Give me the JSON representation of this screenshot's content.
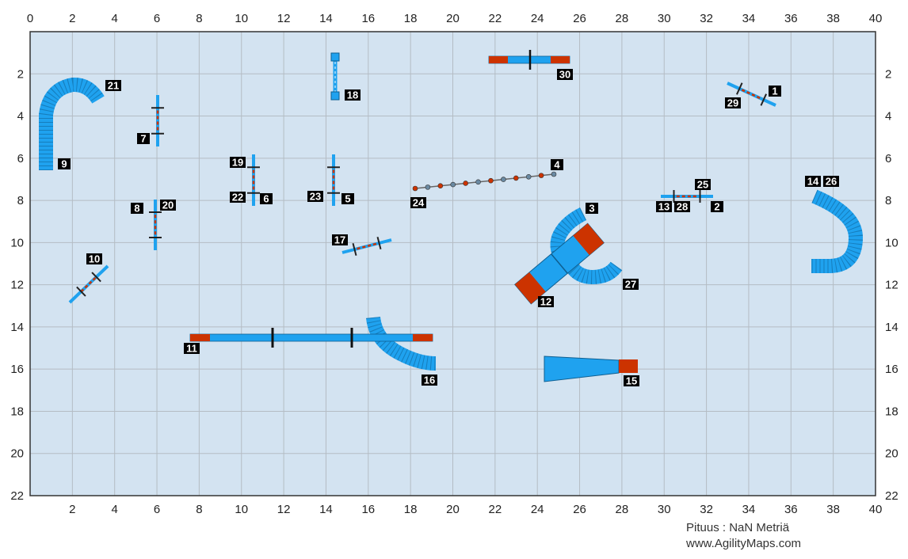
{
  "map": {
    "field_size": {
      "width_m": 40,
      "height_m": 22
    },
    "x_ticks": [
      "0",
      "2",
      "4",
      "6",
      "8",
      "10",
      "12",
      "14",
      "16",
      "18",
      "20",
      "22",
      "24",
      "26",
      "28",
      "30",
      "32",
      "34",
      "36",
      "38",
      "40"
    ],
    "y_ticks": [
      "2",
      "4",
      "6",
      "8",
      "10",
      "12",
      "14",
      "16",
      "18",
      "20",
      "22"
    ],
    "colors": {
      "field": "#d3e3f1",
      "grid": "#b4bcc4",
      "border": "#333333",
      "equipment_blue": "#1fa2ef",
      "contact_red": "#cc3300",
      "label_bg": "#000000",
      "label_text": "#ffffff"
    },
    "obstacles": [
      {
        "number": "1",
        "type": "jump"
      },
      {
        "number": "2",
        "type": "jump"
      },
      {
        "number": "3",
        "type": "tunnel"
      },
      {
        "number": "4",
        "type": "weave-poles"
      },
      {
        "number": "5",
        "type": "jump"
      },
      {
        "number": "6",
        "type": "jump"
      },
      {
        "number": "7",
        "type": "jump"
      },
      {
        "number": "8",
        "type": "jump"
      },
      {
        "number": "9",
        "type": "tunnel"
      },
      {
        "number": "10",
        "type": "jump"
      },
      {
        "number": "11",
        "type": "dog-walk"
      },
      {
        "number": "12",
        "type": "a-frame"
      },
      {
        "number": "13",
        "type": "jump"
      },
      {
        "number": "14",
        "type": "tunnel"
      },
      {
        "number": "15",
        "type": "chute"
      },
      {
        "number": "16",
        "type": "tunnel"
      },
      {
        "number": "17",
        "type": "jump"
      },
      {
        "number": "18",
        "type": "tire"
      },
      {
        "number": "19",
        "type": "jump"
      },
      {
        "number": "20",
        "type": "jump"
      },
      {
        "number": "21",
        "type": "tunnel"
      },
      {
        "number": "22",
        "type": "jump"
      },
      {
        "number": "23",
        "type": "jump"
      },
      {
        "number": "24",
        "type": "weave-poles"
      },
      {
        "number": "25",
        "type": "jump"
      },
      {
        "number": "26",
        "type": "tunnel"
      },
      {
        "number": "27",
        "type": "tunnel"
      },
      {
        "number": "28",
        "type": "jump"
      },
      {
        "number": "29",
        "type": "jump"
      },
      {
        "number": "30",
        "type": "seesaw"
      }
    ]
  },
  "footer": {
    "length": "Pituus : NaN Metriä",
    "site": "www.AgilityMaps.com"
  }
}
